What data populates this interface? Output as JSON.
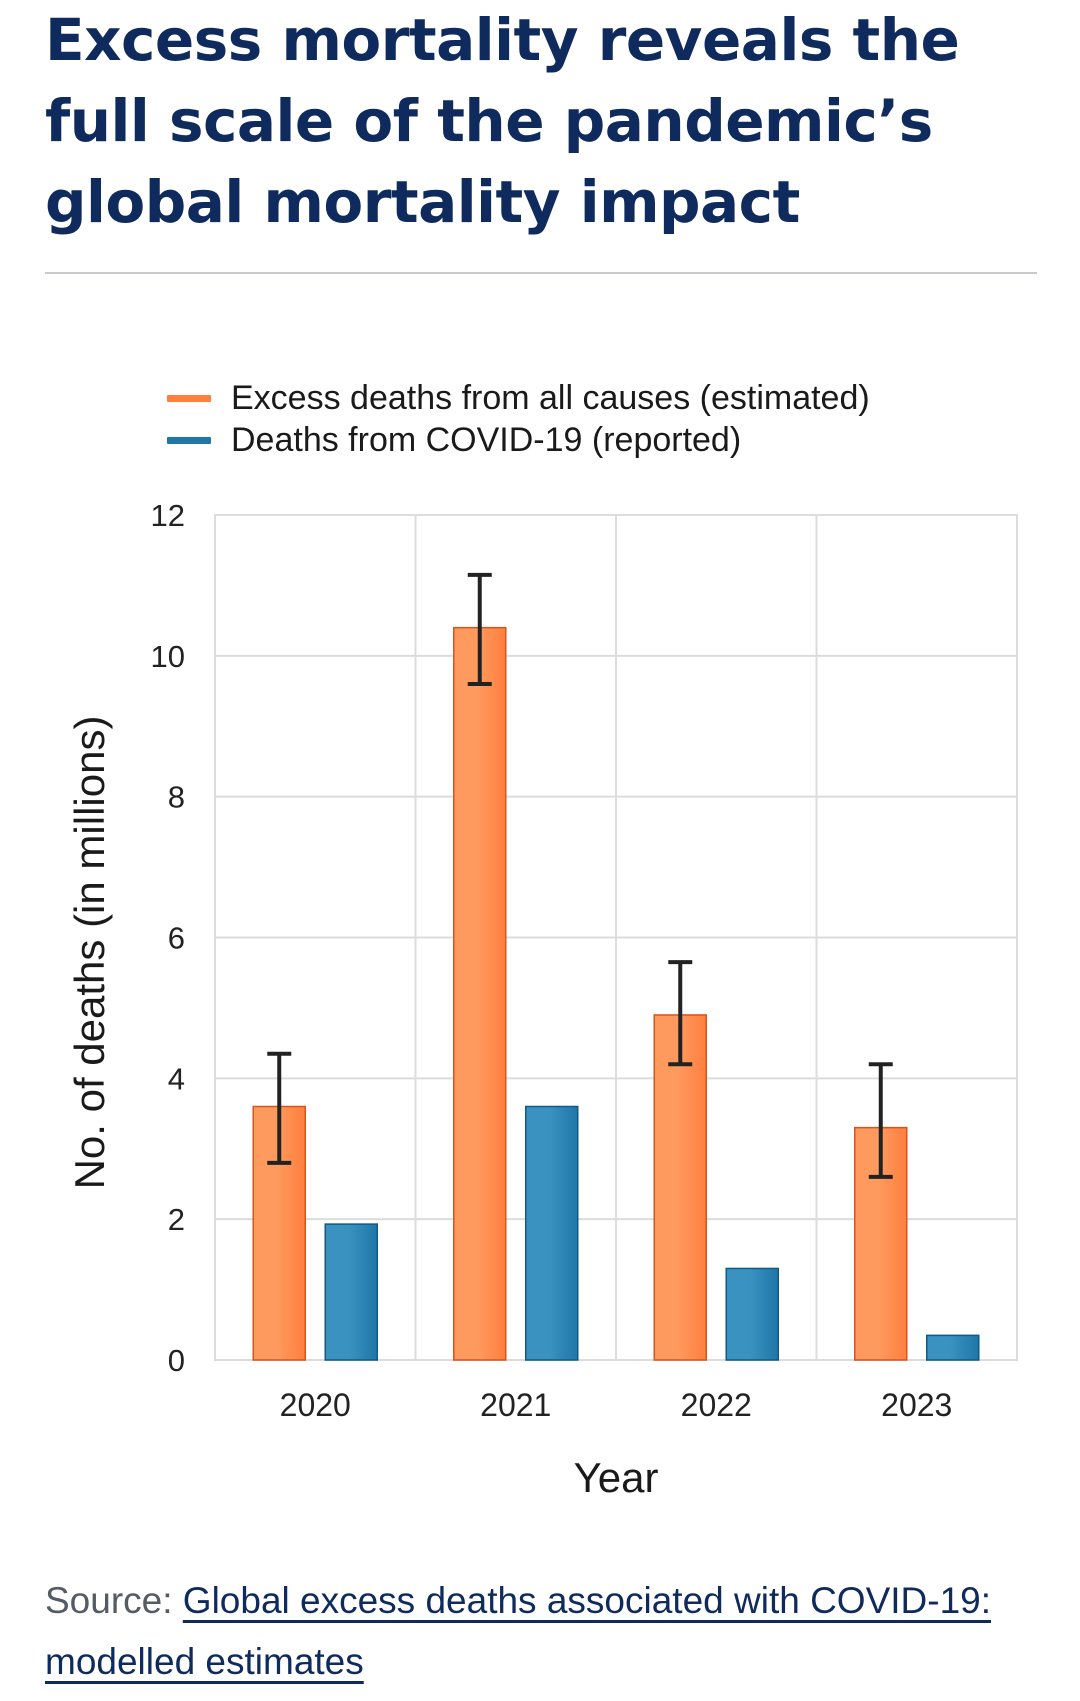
{
  "title": "Excess mortality reveals the full scale of the pandemic’s global mortality impact",
  "source": {
    "prefix": "Source: ",
    "link_text": "Global excess deaths associated with COVID-19: modelled estimates"
  },
  "colors": {
    "excess": "#ff7f3e",
    "excess_dark": "#d9531a",
    "covid": "#1f77a8",
    "covid_dark": "#0f5a86",
    "title": "#0f2a5c",
    "grid": "#dcdcdc",
    "error_bar": "#222222"
  },
  "chart_data": {
    "type": "bar",
    "categories": [
      "2020",
      "2021",
      "2022",
      "2023"
    ],
    "series": [
      {
        "name": "Excess deaths from all causes (estimated)",
        "values": [
          3.6,
          10.4,
          4.9,
          3.3
        ],
        "error_low": [
          2.8,
          9.6,
          4.2,
          2.6
        ],
        "error_high": [
          4.35,
          11.15,
          5.65,
          4.2
        ]
      },
      {
        "name": "Deaths from COVID-19 (reported)",
        "values": [
          1.93,
          3.6,
          1.3,
          0.35
        ]
      }
    ],
    "xlabel": "Year",
    "ylabel": "No. of deaths (in millions)",
    "ylim": [
      0,
      12
    ],
    "yticks": [
      "0",
      "2",
      "4",
      "6",
      "8",
      "10",
      "12"
    ],
    "grid": true,
    "legend_position": "top"
  }
}
